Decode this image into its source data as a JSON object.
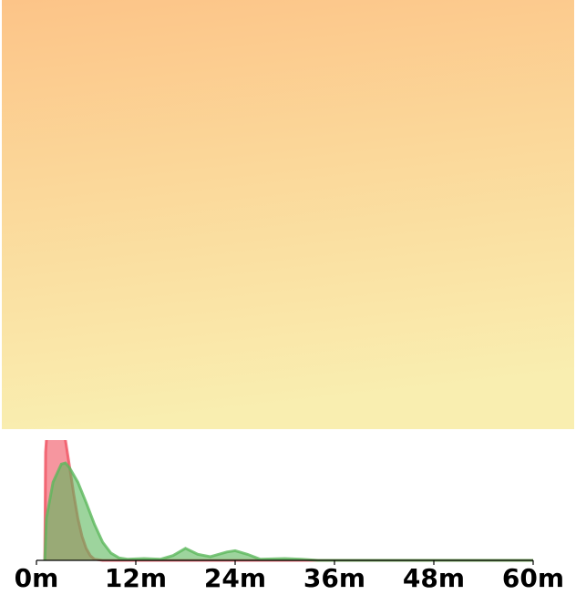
{
  "chart_data": {
    "type": "density",
    "xlim": [
      0,
      60
    ],
    "ylim": [
      0,
      1
    ],
    "xticks": [
      {
        "value": 0,
        "label": "0m"
      },
      {
        "value": 12,
        "label": "12m"
      },
      {
        "value": 24,
        "label": "24m"
      },
      {
        "value": 36,
        "label": "36m"
      },
      {
        "value": 48,
        "label": "48m"
      },
      {
        "value": 60,
        "label": "60m"
      }
    ],
    "series": [
      {
        "color": "#f0505f",
        "x": [
          1.0,
          1.1,
          1.5,
          2,
          2.5,
          3,
          3.5,
          4,
          4.5,
          5,
          5.5,
          6,
          6.5,
          7,
          8,
          60
        ],
        "values": [
          0,
          0.9,
          1.3,
          1.4,
          1.35,
          1.2,
          1.0,
          0.78,
          0.55,
          0.35,
          0.2,
          0.1,
          0.04,
          0.01,
          0,
          0
        ]
      },
      {
        "color": "#5cb85c",
        "x": [
          1.0,
          1.2,
          2,
          3,
          3.5,
          4,
          5,
          6,
          7,
          8,
          9,
          10,
          11,
          13,
          15,
          16.5,
          18,
          19.5,
          21,
          23,
          24,
          25.5,
          27,
          30,
          32,
          34,
          60
        ],
        "values": [
          0,
          0.35,
          0.65,
          0.8,
          0.81,
          0.77,
          0.65,
          0.48,
          0.3,
          0.15,
          0.06,
          0.02,
          0.01,
          0.015,
          0.01,
          0.04,
          0.1,
          0.05,
          0.03,
          0.07,
          0.08,
          0.05,
          0.01,
          0.015,
          0.01,
          0,
          0
        ]
      }
    ]
  }
}
